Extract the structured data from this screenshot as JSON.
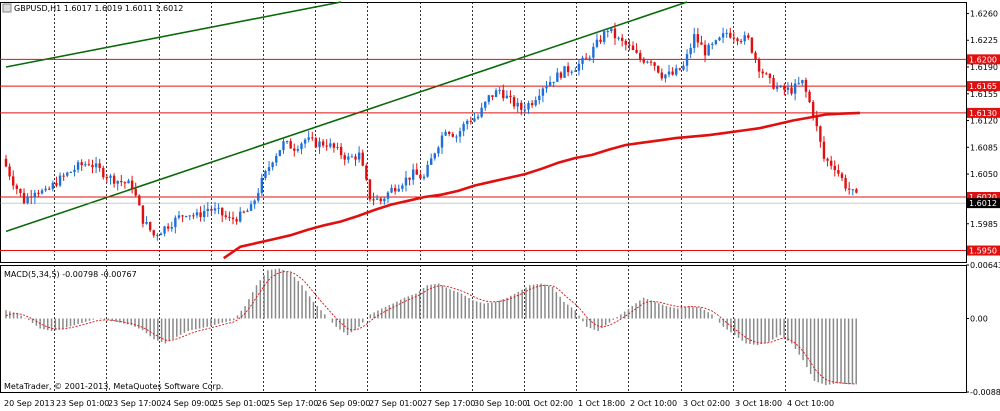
{
  "header": {
    "title": "GBPUSD,H1  1.6017 1.6019 1.6011 1.6012"
  },
  "macd_header": "MACD(5,34,5) -0.00798 -0.00767",
  "copyright": "MetaTrader, © 2001-2013, MetaQuotes Software Corp.",
  "colors": {
    "bull": "#1E6FD8",
    "bear": "#E01010",
    "ma": "#E01010",
    "trend": "#0A6A0A",
    "hline": "#E01010",
    "grid": "#000000"
  },
  "chart_data": [
    {
      "type": "candlestick",
      "title": "GBPUSD,H1",
      "ylim": [
        1.5935,
        1.6275
      ],
      "yticks": [
        "1.6260",
        "1.6225",
        "1.6190",
        "1.6155",
        "1.6120",
        "1.6085",
        "1.6050",
        "1.5985"
      ],
      "x_labels": [
        "20 Sep 2013",
        "23 Sep 01:00",
        "23 Sep 17:00",
        "24 Sep 09:00",
        "25 Sep 01:00",
        "25 Sep 17:00",
        "26 Sep 09:00",
        "27 Sep 01:00",
        "27 Sep 17:00",
        "30 Sep 10:00",
        "1 Oct 02:00",
        "1 Oct 18:00",
        "2 Oct 10:00",
        "3 Oct 02:00",
        "3 Oct 18:00",
        "4 Oct 10:00"
      ],
      "horizontal_levels": [
        {
          "value": 1.62,
          "label": "1.6200"
        },
        {
          "value": 1.6165,
          "label": "1.6165"
        },
        {
          "value": 1.613,
          "label": "1.6130"
        },
        {
          "value": 1.602,
          "label": "1.6020"
        },
        {
          "value": 1.595,
          "label": "1.5950"
        }
      ],
      "current_price": {
        "value": 1.6012,
        "label": "1.6012"
      },
      "close_path": [
        1.607,
        1.604,
        1.6015,
        1.603,
        1.6025,
        1.604,
        1.605,
        1.606,
        1.6065,
        1.6055,
        1.6045,
        1.604,
        1.6035,
        1.599,
        1.597,
        1.598,
        1.599,
        1.6,
        1.5995,
        1.6005,
        1.6,
        1.599,
        1.5995,
        1.6005,
        1.604,
        1.607,
        1.609,
        1.6085,
        1.6095,
        1.609,
        1.609,
        1.608,
        1.607,
        1.6075,
        1.602,
        1.6015,
        1.603,
        1.604,
        1.605,
        1.6045,
        1.608,
        1.611,
        1.61,
        1.612,
        1.6125,
        1.615,
        1.616,
        1.6145,
        1.6135,
        1.6145,
        1.6165,
        1.6175,
        1.6185,
        1.619,
        1.62,
        1.622,
        1.624,
        1.6225,
        1.6215,
        1.62,
        1.62,
        1.618,
        1.618,
        1.619,
        1.623,
        1.621,
        1.622,
        1.6235,
        1.623,
        1.6225,
        1.619,
        1.617,
        1.616,
        1.616,
        1.617,
        1.613,
        1.607,
        1.606,
        1.6035,
        1.602
      ],
      "ma_path": [
        null,
        null,
        null,
        null,
        null,
        null,
        null,
        null,
        null,
        null,
        null,
        null,
        null,
        1.594,
        1.5955,
        1.596,
        1.5965,
        1.597,
        1.5977,
        1.5983,
        1.5988,
        1.5995,
        1.6003,
        1.601,
        1.6015,
        1.602,
        1.6023,
        1.6028,
        1.6035,
        1.604,
        1.6045,
        1.605,
        1.6057,
        1.6065,
        1.6071,
        1.6075,
        1.6082,
        1.6088,
        1.6091,
        1.6094,
        1.6097,
        1.6099,
        1.6101,
        1.6104,
        1.6107,
        1.611,
        1.6115,
        1.612,
        1.6124,
        1.6128,
        1.6129,
        1.613
      ],
      "trendlines": [
        {
          "from": [
            0,
            1.619
          ],
          "to": [
            31,
            1.6275
          ]
        },
        {
          "from": [
            0,
            1.5975
          ],
          "to": [
            63,
            1.6275
          ]
        }
      ]
    },
    {
      "type": "bar",
      "title": "MACD(5,34,5)",
      "ylim": [
        -0.00883,
        0.00643
      ],
      "yticks": [
        "0.00643",
        "0.00",
        "-0.00883"
      ],
      "values": [
        0.001,
        0.0006,
        -0.0002,
        -0.0012,
        -0.0015,
        -0.0012,
        -0.0008,
        -0.0004,
        0.0,
        -0.0002,
        -0.0005,
        -0.0008,
        -0.0014,
        -0.0025,
        -0.003,
        -0.0022,
        -0.0015,
        -0.0012,
        -0.0009,
        -0.0005,
        -0.0002,
        0.0015,
        0.004,
        0.0058,
        0.006,
        0.0055,
        0.004,
        0.002,
        0.0005,
        -0.001,
        -0.002,
        -0.001,
        0.0005,
        0.0012,
        0.0018,
        0.0025,
        0.003,
        0.004,
        0.0042,
        0.0035,
        0.003,
        0.0022,
        0.0018,
        0.002,
        0.0025,
        0.0032,
        0.004,
        0.0042,
        0.0038,
        0.002,
        0.001,
        -0.001,
        -0.0015,
        -0.0005,
        0.0005,
        0.0015,
        0.0025,
        0.002,
        0.0015,
        0.0012,
        0.0015,
        0.0013,
        0.0005,
        -0.001,
        -0.002,
        -0.003,
        -0.0032,
        -0.0028,
        -0.002,
        -0.003,
        -0.005,
        -0.0075,
        -0.008,
        -0.0078,
        -0.0079
      ]
    }
  ]
}
